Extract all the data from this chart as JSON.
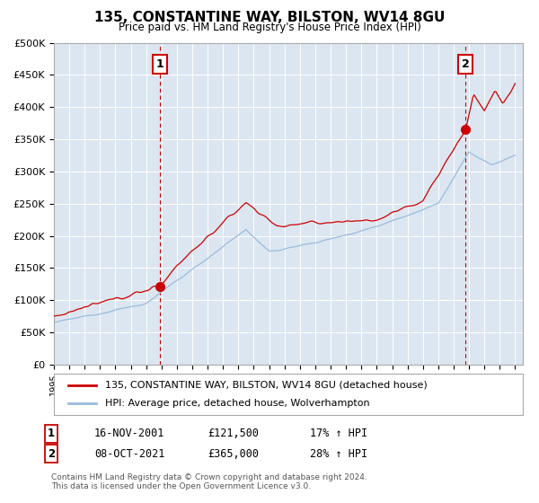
{
  "title": "135, CONSTANTINE WAY, BILSTON, WV14 8GU",
  "subtitle": "Price paid vs. HM Land Registry's House Price Index (HPI)",
  "plot_bg_color": "#dce6f1",
  "ylabel_ticks": [
    "£0",
    "£50K",
    "£100K",
    "£150K",
    "£200K",
    "£250K",
    "£300K",
    "£350K",
    "£400K",
    "£450K",
    "£500K"
  ],
  "ytick_values": [
    0,
    50000,
    100000,
    150000,
    200000,
    250000,
    300000,
    350000,
    400000,
    450000,
    500000
  ],
  "marker1": {
    "year": 2001.88,
    "value": 121500,
    "label": "1",
    "color": "#cc0000"
  },
  "marker2": {
    "year": 2021.77,
    "value": 365000,
    "label": "2",
    "color": "#cc0000"
  },
  "vline_color": "#cc0000",
  "red_line_color": "#cc0000",
  "blue_line_color": "#99bbdd",
  "legend_label_red": "135, CONSTANTINE WAY, BILSTON, WV14 8GU (detached house)",
  "legend_label_blue": "HPI: Average price, detached house, Wolverhampton",
  "ann1_label": "1",
  "ann1_date": "16-NOV-2001",
  "ann1_price": "£121,500",
  "ann1_hpi": "17% ↑ HPI",
  "ann2_label": "2",
  "ann2_date": "08-OCT-2021",
  "ann2_price": "£365,000",
  "ann2_hpi": "28% ↑ HPI",
  "footer": "Contains HM Land Registry data © Crown copyright and database right 2024.\nThis data is licensed under the Open Government Licence v3.0."
}
